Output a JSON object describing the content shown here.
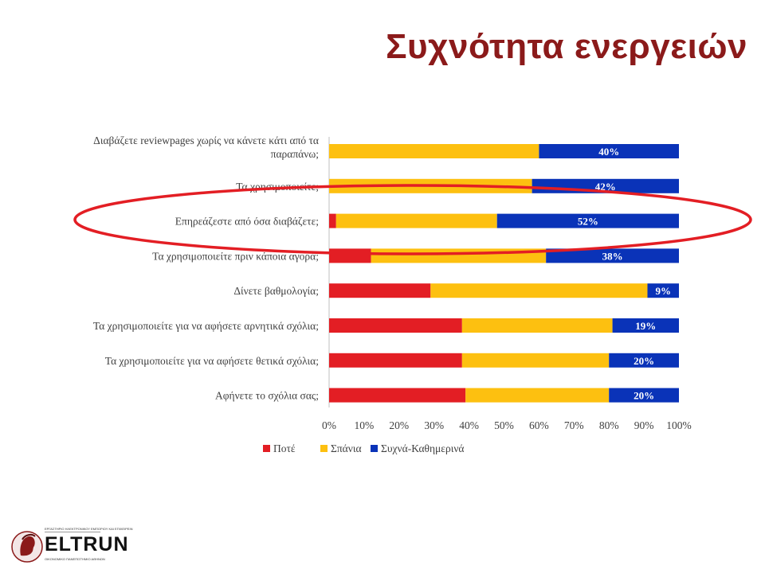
{
  "slide": {
    "title": "Συχνότητα ενεργειών"
  },
  "colors": {
    "title": "#8b1a1a",
    "never": "#e31e24",
    "rarely": "#fdc010",
    "often": "#0a33b8",
    "highlight": "#e31e24"
  },
  "logo": {
    "wordmark": "ELTRUN",
    "subtitle": "ΕΡΓΑΣΤΗΡΙΟ ΗΛΕΚΤΡΟΝΙΚΟΥ ΕΜΠΟΡΙΟΥ ΚΑΙ ΕΠΙΧΕΙΡΕΙΝ",
    "university": "ΟΙΚΟΝΟΜΙΚΟ ΠΑΝΕΠΙΣΤΗΜΙΟ ΑΘΗΝΩΝ",
    "icon": "athena-head-icon"
  },
  "chart_data": {
    "type": "bar",
    "orientation": "horizontal",
    "stacked": "percent",
    "categories": [
      "Διαβάζετε reviewpages χωρίς να κάνετε κάτι από τα παραπάνω;",
      "Τα χρησιμοποιείτε;",
      "Επηρεάζεστε από όσα διαβάζετε;",
      "Τα χρησιμοποιείτε πριν κάποια αγορά;",
      "Δίνετε βαθμολογία;",
      "Τα χρησιμοποιείτε για να αφήσετε αρνητικά σχόλια;",
      "Τα χρησιμοποιείτε για να αφήσετε θετικά σχόλια;",
      "Αφήνετε το σχόλια σας;"
    ],
    "series": [
      {
        "name": "Ποτέ",
        "color": "#e31e24",
        "values": [
          0,
          0,
          2,
          12,
          29,
          38,
          38,
          39
        ]
      },
      {
        "name": "Σπάνια",
        "color": "#fdc010",
        "values": [
          60,
          58,
          46,
          50,
          62,
          43,
          42,
          41
        ]
      },
      {
        "name": "Συχνά-Καθημερινά",
        "color": "#0a33b8",
        "values": [
          40,
          42,
          52,
          38,
          9,
          19,
          20,
          20
        ]
      }
    ],
    "data_labels": [
      "40%",
      "42%",
      "52%",
      "38%",
      "9%",
      "19%",
      "20%",
      "20%"
    ],
    "x_ticks": [
      "0%",
      "10%",
      "20%",
      "30%",
      "40%",
      "50%",
      "60%",
      "70%",
      "80%",
      "90%",
      "100%"
    ],
    "xlim": [
      0,
      100
    ],
    "grid": false,
    "legend_position": "bottom",
    "highlighted_category_index": 2
  }
}
